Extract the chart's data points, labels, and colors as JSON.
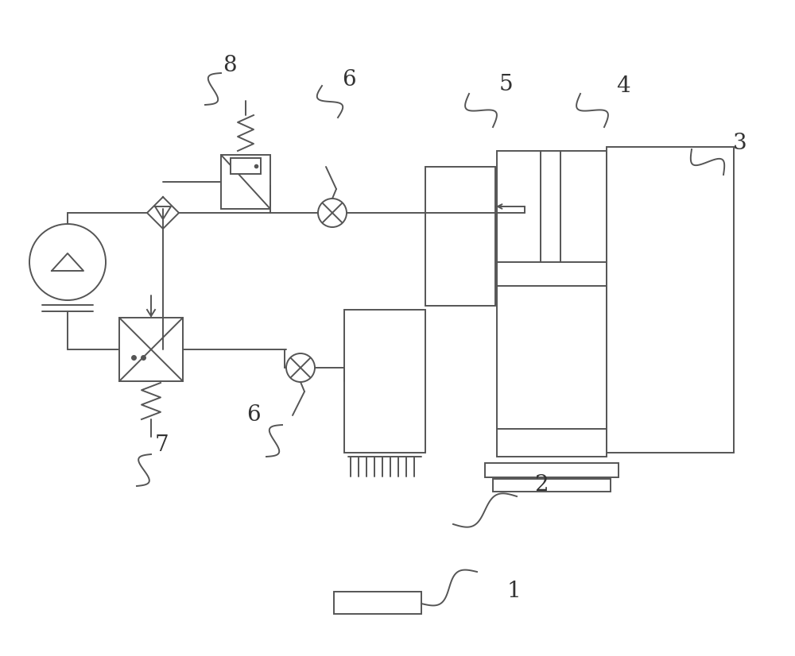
{
  "bg_color": "#ffffff",
  "line_color": "#555555",
  "line_width": 1.4
}
